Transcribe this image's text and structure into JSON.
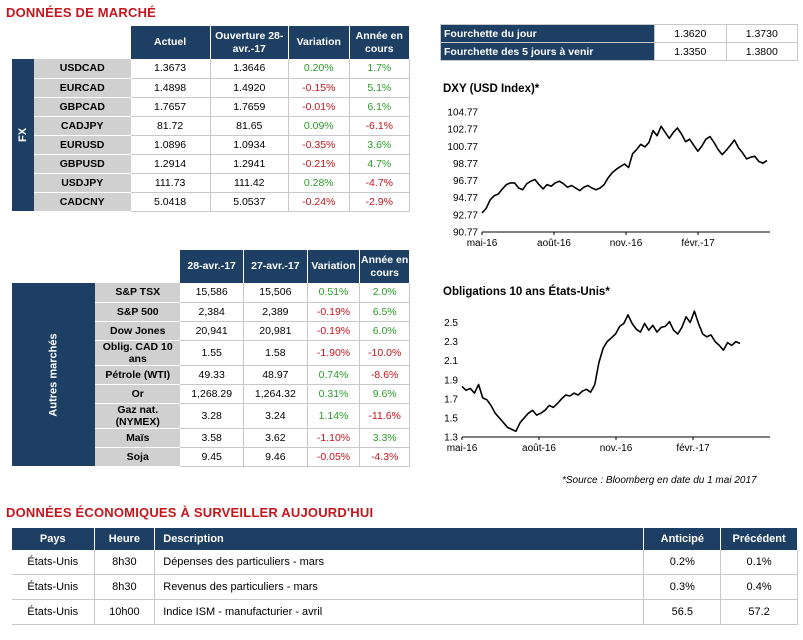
{
  "market_title": "DONNÉES DE MARCHÉ",
  "fx": {
    "side_label": "FX",
    "headers": [
      "Actuel",
      "Ouverture 28-avr.-17",
      "Variation",
      "Année en cours"
    ],
    "rows": [
      {
        "name": "USDCAD",
        "cur": "1.3673",
        "open": "1.3646",
        "var": "0.20%",
        "ytd": "1.7%",
        "var_neg": false,
        "ytd_neg": false
      },
      {
        "name": "EURCAD",
        "cur": "1.4898",
        "open": "1.4920",
        "var": "-0.15%",
        "ytd": "5.1%",
        "var_neg": true,
        "ytd_neg": false
      },
      {
        "name": "GBPCAD",
        "cur": "1.7657",
        "open": "1.7659",
        "var": "-0.01%",
        "ytd": "6.1%",
        "var_neg": true,
        "ytd_neg": false
      },
      {
        "name": "CADJPY",
        "cur": "81.72",
        "open": "81.65",
        "var": "0.09%",
        "ytd": "-6.1%",
        "var_neg": false,
        "ytd_neg": true
      },
      {
        "name": "EURUSD",
        "cur": "1.0896",
        "open": "1.0934",
        "var": "-0.35%",
        "ytd": "3.6%",
        "var_neg": true,
        "ytd_neg": false
      },
      {
        "name": "GBPUSD",
        "cur": "1.2914",
        "open": "1.2941",
        "var": "-0.21%",
        "ytd": "4.7%",
        "var_neg": true,
        "ytd_neg": false
      },
      {
        "name": "USDJPY",
        "cur": "111.73",
        "open": "111.42",
        "var": "0.28%",
        "ytd": "-4.7%",
        "var_neg": false,
        "ytd_neg": true
      },
      {
        "name": "CADCNY",
        "cur": "5.0418",
        "open": "5.0537",
        "var": "-0.24%",
        "ytd": "-2.9%",
        "var_neg": true,
        "ytd_neg": true
      }
    ]
  },
  "other": {
    "side_label": "Autres marchés",
    "headers": [
      "28-avr.-17",
      "27-avr.-17",
      "Variation",
      "Année en cours"
    ],
    "rows": [
      {
        "name": "S&P TSX",
        "cur": "15,586",
        "open": "15,506",
        "var": "0.51%",
        "ytd": "2.0%",
        "var_neg": false,
        "ytd_neg": false
      },
      {
        "name": "S&P 500",
        "cur": "2,384",
        "open": "2,389",
        "var": "-0.19%",
        "ytd": "6.5%",
        "var_neg": true,
        "ytd_neg": false
      },
      {
        "name": "Dow Jones",
        "cur": "20,941",
        "open": "20,981",
        "var": "-0.19%",
        "ytd": "6.0%",
        "var_neg": true,
        "ytd_neg": false
      },
      {
        "name": "Oblig. CAD 10 ans",
        "cur": "1.55",
        "open": "1.58",
        "var": "-1.90%",
        "ytd": "-10.0%",
        "var_neg": true,
        "ytd_neg": true
      },
      {
        "name": "Pétrole (WTI)",
        "cur": "49.33",
        "open": "48.97",
        "var": "0.74%",
        "ytd": "-8.6%",
        "var_neg": false,
        "ytd_neg": true
      },
      {
        "name": "Or",
        "cur": "1,268.29",
        "open": "1,264.32",
        "var": "0.31%",
        "ytd": "9.6%",
        "var_neg": false,
        "ytd_neg": false
      },
      {
        "name": "Gaz nat. (NYMEX)",
        "cur": "3.28",
        "open": "3.24",
        "var": "1.14%",
        "ytd": "-11.6%",
        "var_neg": false,
        "ytd_neg": true
      },
      {
        "name": "Maïs",
        "cur": "3.58",
        "open": "3.62",
        "var": "-1.10%",
        "ytd": "3.3%",
        "var_neg": true,
        "ytd_neg": false
      },
      {
        "name": "Soja",
        "cur": "9.45",
        "open": "9.46",
        "var": "-0.05%",
        "ytd": "-4.3%",
        "var_neg": true,
        "ytd_neg": true
      }
    ]
  },
  "fourchette": [
    {
      "label": "Fourchette du jour",
      "low": "1.3620",
      "high": "1.3730"
    },
    {
      "label": "Fourchette des 5 jours à venir",
      "low": "1.3350",
      "high": "1.3800"
    }
  ],
  "chart_data": [
    {
      "type": "line",
      "title": "DXY (USD Index)*",
      "yticks": [
        "104.77",
        "102.77",
        "100.77",
        "98.77",
        "96.77",
        "94.77",
        "92.77",
        "90.77"
      ],
      "ylim": [
        90.77,
        104.77
      ],
      "xticks": [
        "mai-16",
        "août-16",
        "nov.-16",
        "févr.-17"
      ],
      "xtick_pos": [
        0,
        3,
        6,
        9
      ],
      "x_count": 12,
      "values": [
        93.0,
        93.5,
        94.5,
        95.0,
        95.2,
        95.8,
        96.3,
        96.5,
        96.5,
        95.9,
        95.7,
        96.4,
        96.7,
        96.9,
        96.3,
        95.8,
        96.3,
        96.1,
        96.5,
        96.7,
        96.4,
        96.0,
        96.2,
        95.9,
        95.6,
        96.0,
        96.2,
        95.9,
        95.7,
        95.9,
        96.3,
        97.1,
        97.7,
        98.1,
        98.4,
        98.7,
        98.3,
        99.9,
        100.4,
        101.0,
        100.7,
        101.2,
        102.6,
        102.0,
        103.1,
        102.4,
        101.7,
        102.4,
        102.9,
        102.2,
        101.3,
        101.6,
        100.9,
        100.2,
        100.8,
        101.6,
        101.9,
        101.2,
        100.4,
        99.8,
        100.3,
        100.9,
        101.5,
        100.6,
        100.0,
        99.3,
        99.5,
        99.6,
        99.0,
        98.8,
        99.1
      ]
    },
    {
      "type": "line",
      "title": "Obligations 10 ans États-Unis*",
      "yticks": [
        "2.5",
        "2.3",
        "2.1",
        "1.9",
        "1.7",
        "1.5",
        "1.3"
      ],
      "ylim": [
        1.3,
        2.6
      ],
      "xticks": [
        "mai-16",
        "août-16",
        "nov.-16",
        "févr.-17"
      ],
      "xtick_pos": [
        0,
        3,
        6,
        9
      ],
      "x_count": 12,
      "values": [
        1.83,
        1.79,
        1.81,
        1.76,
        1.85,
        1.71,
        1.69,
        1.63,
        1.55,
        1.5,
        1.45,
        1.4,
        1.38,
        1.36,
        1.45,
        1.5,
        1.55,
        1.58,
        1.53,
        1.55,
        1.58,
        1.63,
        1.61,
        1.65,
        1.7,
        1.74,
        1.73,
        1.76,
        1.74,
        1.78,
        1.8,
        1.77,
        1.85,
        2.08,
        2.23,
        2.3,
        2.34,
        2.38,
        2.46,
        2.49,
        2.58,
        2.49,
        2.43,
        2.4,
        2.49,
        2.42,
        2.47,
        2.4,
        2.45,
        2.46,
        2.51,
        2.42,
        2.38,
        2.45,
        2.56,
        2.5,
        2.62,
        2.49,
        2.38,
        2.35,
        2.37,
        2.3,
        2.26,
        2.21,
        2.29,
        2.26,
        2.3,
        2.28
      ]
    }
  ],
  "source_note": "*Source : Bloomberg en date du  1 mai 2017",
  "econ": {
    "title": "DONNÉES ÉCONOMIQUES À SURVEILLER AUJOURD'HUI",
    "headers": [
      "Pays",
      "Heure",
      "Description",
      "Anticipé",
      "Précédent"
    ],
    "rows": [
      {
        "pays": "États-Unis",
        "heure": "8h30",
        "desc": "Dépenses des particuliers - mars",
        "anticipe": "0.2%",
        "precedent": "0.1%"
      },
      {
        "pays": "États-Unis",
        "heure": "8h30",
        "desc": "Revenus des particuliers - mars",
        "anticipe": "0.3%",
        "precedent": "0.4%"
      },
      {
        "pays": "États-Unis",
        "heure": "10h00",
        "desc": "Indice ISM - manufacturier - avril",
        "anticipe": "56.5",
        "precedent": "57.2"
      }
    ]
  },
  "colors": {
    "navy": "#1c3f63",
    "red": "#c4161c",
    "green": "#2a9d2a",
    "grey": "#d0d0d0"
  }
}
